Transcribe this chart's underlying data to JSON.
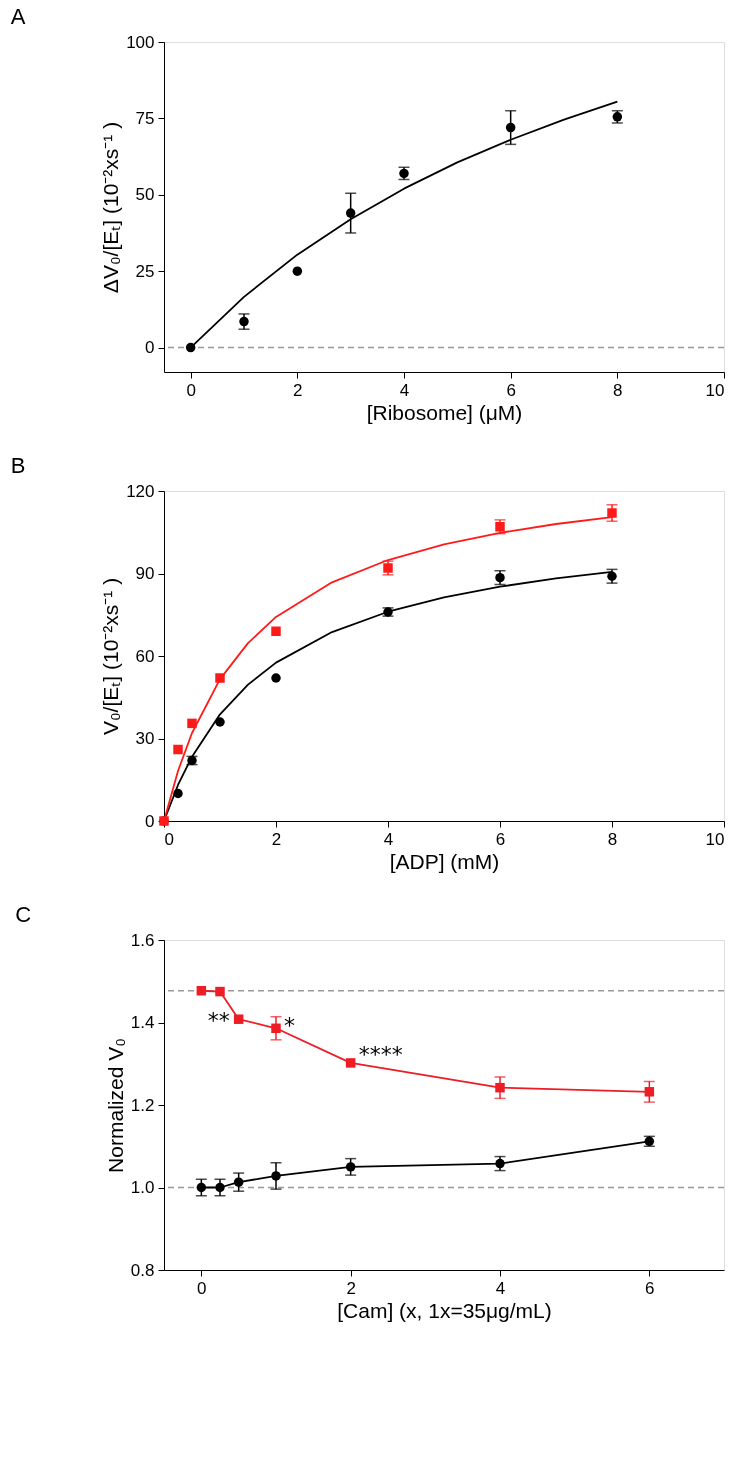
{
  "chart_data": [
    {
      "type": "scatter",
      "title": "A",
      "xlabel": "[Ribosome] (μM)",
      "ylabel": "ΔV₀/[Eₜ] (10⁻²xs⁻¹ )",
      "xlim": [
        -0.5,
        10
      ],
      "xticks": [
        0,
        2,
        4,
        6,
        8,
        10
      ],
      "ylim": [
        -8,
        100
      ],
      "yticks": [
        0,
        25,
        50,
        75,
        100
      ],
      "grid": false,
      "line_style": "solid",
      "series": [
        {
          "color": "#000000",
          "marker": "circle",
          "x": [
            0,
            1,
            2,
            3,
            4,
            6,
            8
          ],
          "values": [
            0,
            8.5,
            25,
            44,
            57,
            72,
            75.5
          ],
          "errors": [
            null,
            2.5,
            null,
            6.5,
            2,
            5.5,
            2
          ]
        },
        {
          "type": "line",
          "color": "#000000",
          "marker": "none",
          "x": [
            0,
            1,
            2,
            3,
            4,
            5,
            6,
            7,
            8
          ],
          "values": [
            0,
            16.6,
            30.4,
            42.0,
            52.0,
            60.6,
            68.0,
            74.6,
            80.5
          ]
        }
      ],
      "ref_lines": [
        {
          "axis": "y",
          "value": 0,
          "color": "#999999",
          "line_style": "dashed"
        }
      ]
    },
    {
      "type": "scatter",
      "title": "B",
      "xlabel": "[ADP] (mM)",
      "ylabel": "V₀/[Eₜ] (10⁻²xs⁻¹ )",
      "xlim": [
        0,
        10
      ],
      "xticks": [
        0,
        2,
        4,
        6,
        8,
        10
      ],
      "ylim": [
        0,
        120
      ],
      "yticks": [
        0,
        30,
        60,
        90,
        120
      ],
      "grid": false,
      "line_style": "solid",
      "series": [
        {
          "color": "#000000",
          "marker": "circle",
          "x": [
            0,
            0.25,
            0.5,
            1,
            2,
            4,
            6,
            8
          ],
          "values": [
            0,
            10,
            22,
            36,
            52,
            76,
            88.5,
            89
          ],
          "errors": [
            null,
            null,
            1.5,
            null,
            null,
            1.5,
            2.5,
            2.5
          ]
        },
        {
          "type": "line",
          "color": "#000000",
          "marker": "none",
          "x": [
            0,
            0.25,
            0.5,
            1,
            1.5,
            2,
            3,
            4,
            5,
            6,
            7,
            8
          ],
          "values": [
            0,
            13.1,
            23.4,
            38.8,
            49.6,
            57.6,
            68.7,
            76.1,
            81.3,
            85.2,
            88.2,
            90.6
          ]
        },
        {
          "color": "#ff1a1a",
          "marker": "square",
          "x": [
            0,
            0.25,
            0.5,
            1,
            2,
            4,
            6,
            8
          ],
          "values": [
            0,
            26,
            35.5,
            52,
            69,
            92,
            107,
            112
          ],
          "errors": [
            null,
            null,
            null,
            null,
            null,
            2.5,
            2.5,
            3
          ]
        },
        {
          "type": "line",
          "color": "#ff1a1a",
          "marker": "none",
          "x": [
            0,
            0.25,
            0.5,
            1,
            1.5,
            2,
            3,
            4,
            5,
            6,
            7,
            8
          ],
          "values": [
            0,
            18.2,
            32.0,
            51.6,
            64.7,
            74.2,
            86.8,
            94.9,
            100.6,
            104.8,
            108.0,
            110.5
          ]
        }
      ]
    },
    {
      "type": "line",
      "title": "C",
      "xlabel": "[Cam] (x, 1x=35μg/mL)",
      "ylabel": "Normalized V₀",
      "xlim": [
        -0.5,
        7
      ],
      "xticks": [
        0,
        2,
        4,
        6
      ],
      "ylim": [
        0.8,
        1.6
      ],
      "yticks": [
        {
          "value": 0.8,
          "label": "0.8"
        },
        {
          "value": 1.0,
          "label": "1.0"
        },
        {
          "value": 1.2,
          "label": "1.2"
        },
        {
          "value": 1.4,
          "label": "1.4"
        },
        {
          "value": 1.6,
          "label": "1.6"
        }
      ],
      "grid": false,
      "series": [
        {
          "color": "#000000",
          "marker": "circle",
          "x": [
            0,
            0.25,
            0.5,
            1,
            2,
            4,
            6
          ],
          "values": [
            1.0,
            1.0,
            1.013,
            1.028,
            1.05,
            1.058,
            1.112
          ],
          "errors": [
            0.02,
            0.02,
            0.022,
            0.032,
            0.02,
            0.017,
            0.012
          ]
        },
        {
          "color": "#ee1c25",
          "marker": "square",
          "x": [
            0,
            0.25,
            0.5,
            1,
            2,
            4,
            6
          ],
          "values": [
            1.477,
            1.475,
            1.408,
            1.386,
            1.302,
            1.242,
            1.232
          ],
          "errors": [
            null,
            null,
            null,
            0.028,
            null,
            0.026,
            0.025
          ]
        }
      ],
      "ref_lines": [
        {
          "axis": "y",
          "value": 1.477,
          "color": "#999999",
          "line_style": "dashed"
        },
        {
          "axis": "y",
          "value": 1.0,
          "color": "#999999",
          "line_style": "dashed"
        }
      ],
      "line_style": "solid",
      "annotations": [
        {
          "text": "**",
          "x": 0.5,
          "y": 1.408
        },
        {
          "text": "*",
          "x": 1,
          "y": 1.386
        },
        {
          "text": "****",
          "x": 2,
          "y": 1.302
        }
      ]
    }
  ]
}
